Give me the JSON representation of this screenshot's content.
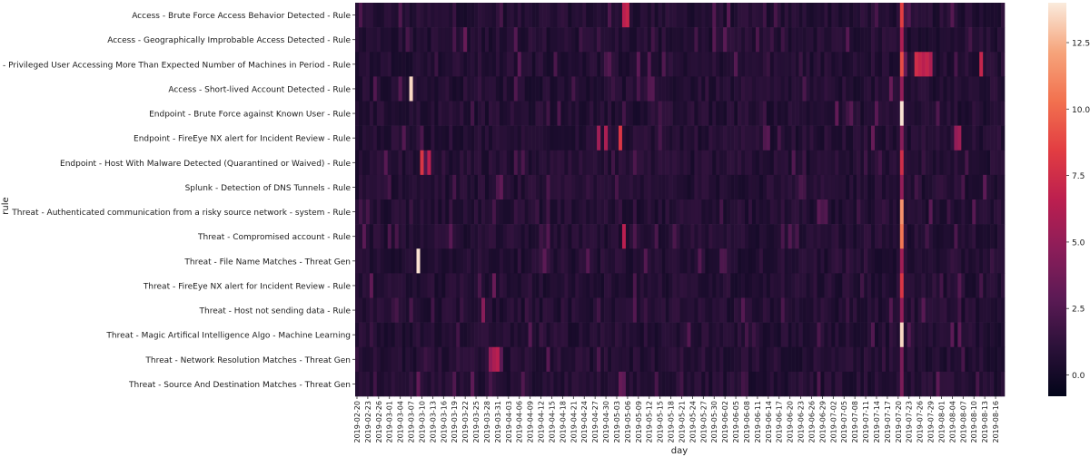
{
  "chart_data": {
    "type": "heatmap",
    "xlabel": "day",
    "ylabel": "rule",
    "rows": [
      "Access - Brute Force Access Behavior Detected - Rule",
      "Access - Geographically Improbable Access Detected - Rule",
      "Access - Privileged User Accessing More Than Expected Number of Machines in Period - Rule",
      "Access - Short-lived Account Detected - Rule",
      "Endpoint - Brute Force against Known User - Rule",
      "Endpoint - FireEye NX alert for Incident Review - Rule",
      "Endpoint - Host With Malware Detected (Quarantined or Waived) - Rule",
      "Splunk - Detection of DNS Tunnels - Rule",
      "Threat - Authenticated communication from a risky source network - system - Rule",
      "Threat - Compromised account - Rule",
      "Threat - File Name Matches - Threat Gen",
      "Threat - FireEye NX alert for Incident Review - Rule",
      "Threat - Host not sending data - Rule",
      "Threat - Magic Artifical Intelligence Algo - Machine Learning",
      "Threat - Network Resolution Matches - Threat Gen",
      "Threat - Source And Destination Matches - Threat Gen"
    ],
    "x_tick_labels": [
      "2019-02-20",
      "2019-02-23",
      "2019-02-26",
      "2019-03-01",
      "2019-03-04",
      "2019-03-07",
      "2019-03-10",
      "2019-03-13",
      "2019-03-16",
      "2019-03-19",
      "2019-03-22",
      "2019-03-25",
      "2019-03-28",
      "2019-03-31",
      "2019-04-03",
      "2019-04-06",
      "2019-04-09",
      "2019-04-12",
      "2019-04-15",
      "2019-04-18",
      "2019-04-21",
      "2019-04-24",
      "2019-04-27",
      "2019-04-30",
      "2019-05-03",
      "2019-05-06",
      "2019-05-09",
      "2019-05-12",
      "2019-05-15",
      "2019-05-18",
      "2019-05-21",
      "2019-05-24",
      "2019-05-27",
      "2019-05-30",
      "2019-06-02",
      "2019-06-05",
      "2019-06-08",
      "2019-06-11",
      "2019-06-14",
      "2019-06-17",
      "2019-06-20",
      "2019-06-23",
      "2019-06-26",
      "2019-06-29",
      "2019-07-02",
      "2019-07-05",
      "2019-07-08",
      "2019-07-11",
      "2019-07-14",
      "2019-07-17",
      "2019-07-20",
      "2019-07-23",
      "2019-07-26",
      "2019-07-29",
      "2019-08-01",
      "2019-08-04",
      "2019-08-07",
      "2019-08-10",
      "2019-08-13",
      "2019-08-16"
    ],
    "num_days": 180,
    "colormap": "rocket",
    "vmin": -0.8,
    "vmax": 14.0,
    "colorbar_ticks": [
      0.0,
      2.5,
      5.0,
      7.5,
      10.0,
      12.5
    ],
    "colorbar_tick_labels": [
      "0.0",
      "2.5",
      "5.0",
      "7.5",
      "10.0",
      "12.5"
    ],
    "hotspots": [
      {
        "row": 3,
        "day": 15,
        "value": 13.5
      },
      {
        "row": 10,
        "day": 17,
        "value": 13.8
      },
      {
        "row": 6,
        "day": 18,
        "value": 8.0
      },
      {
        "row": 6,
        "day": 20,
        "value": 6.5
      },
      {
        "row": 5,
        "day": 73,
        "value": 8.0
      },
      {
        "row": 5,
        "day": 69,
        "value": 6.0
      },
      {
        "row": 5,
        "day": 67,
        "value": 5.5
      },
      {
        "row": 0,
        "day": 74,
        "value": 6.5
      },
      {
        "row": 0,
        "day": 75,
        "value": 7.0
      },
      {
        "row": 14,
        "day": 38,
        "value": 6.0
      },
      {
        "row": 14,
        "day": 39,
        "value": 6.5
      },
      {
        "row": 14,
        "day": 37,
        "value": 5.0
      },
      {
        "row": 0,
        "day": 151,
        "value": 8.5
      },
      {
        "row": 1,
        "day": 151,
        "value": 6.0
      },
      {
        "row": 2,
        "day": 151,
        "value": 9.0
      },
      {
        "row": 3,
        "day": 151,
        "value": 5.0
      },
      {
        "row": 4,
        "day": 151,
        "value": 13.8
      },
      {
        "row": 5,
        "day": 151,
        "value": 4.5
      },
      {
        "row": 6,
        "day": 151,
        "value": 7.5
      },
      {
        "row": 7,
        "day": 151,
        "value": 5.0
      },
      {
        "row": 8,
        "day": 151,
        "value": 11.5
      },
      {
        "row": 9,
        "day": 151,
        "value": 10.5
      },
      {
        "row": 10,
        "day": 151,
        "value": 5.5
      },
      {
        "row": 11,
        "day": 151,
        "value": 8.0
      },
      {
        "row": 12,
        "day": 151,
        "value": 5.0
      },
      {
        "row": 13,
        "day": 151,
        "value": 13.5
      },
      {
        "row": 14,
        "day": 151,
        "value": 4.0
      },
      {
        "row": 15,
        "day": 151,
        "value": 4.0
      },
      {
        "row": 2,
        "day": 155,
        "value": 7.5
      },
      {
        "row": 2,
        "day": 156,
        "value": 7.0
      },
      {
        "row": 2,
        "day": 157,
        "value": 6.5
      },
      {
        "row": 2,
        "day": 158,
        "value": 7.0
      },
      {
        "row": 2,
        "day": 159,
        "value": 6.0
      },
      {
        "row": 2,
        "day": 173,
        "value": 7.0
      },
      {
        "row": 5,
        "day": 166,
        "value": 5.0
      },
      {
        "row": 5,
        "day": 167,
        "value": 5.5
      },
      {
        "row": 12,
        "day": 35,
        "value": 4.5
      },
      {
        "row": 9,
        "day": 74,
        "value": 6.5
      }
    ]
  }
}
